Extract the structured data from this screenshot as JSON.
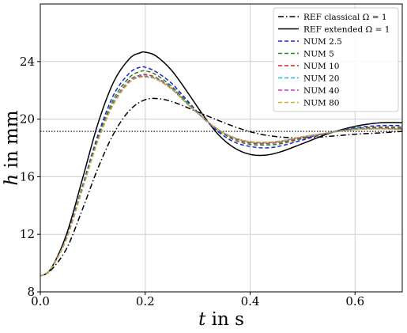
{
  "chart_data": {
    "type": "line",
    "xlabel_var": "t",
    "xlabel_unit": " in s",
    "ylabel_var": "h",
    "ylabel_unit": " in mm",
    "xlim": [
      0.0,
      0.69
    ],
    "ylim": [
      8,
      28
    ],
    "x_ticks": [
      0.0,
      0.2,
      0.4,
      0.6
    ],
    "x_tick_labels": [
      "0.0",
      "0.2",
      "0.4",
      "0.6"
    ],
    "y_ticks": [
      8,
      12,
      16,
      20,
      24
    ],
    "y_tick_labels": [
      "8",
      "12",
      "16",
      "20",
      "24"
    ],
    "grid": true,
    "legend_position": "top-right",
    "reference_line": {
      "y": 19.15,
      "style": "dotted",
      "color": "#000000"
    },
    "series": [
      {
        "name": "REF classical Ω = 1",
        "color": "#000000",
        "dash": "7,3,1.5,3",
        "x": [
          0.0,
          0.02,
          0.05,
          0.08,
          0.11,
          0.14,
          0.17,
          0.2,
          0.23,
          0.26,
          0.3,
          0.34,
          0.38,
          0.42,
          0.46,
          0.5,
          0.55,
          0.6,
          0.65,
          0.69
        ],
        "y": [
          9.1,
          9.5,
          11.0,
          13.7,
          16.6,
          19.0,
          20.6,
          21.35,
          21.4,
          21.1,
          20.5,
          19.9,
          19.35,
          18.95,
          18.75,
          18.7,
          18.8,
          18.95,
          19.05,
          19.15
        ]
      },
      {
        "name": "REF extended Ω = 1",
        "color": "#000000",
        "dash": "",
        "x": [
          0.0,
          0.02,
          0.05,
          0.08,
          0.11,
          0.14,
          0.17,
          0.19,
          0.2,
          0.22,
          0.25,
          0.28,
          0.31,
          0.34,
          0.37,
          0.4,
          0.43,
          0.46,
          0.5,
          0.55,
          0.6,
          0.65,
          0.69
        ],
        "y": [
          9.1,
          9.6,
          12.0,
          15.8,
          19.7,
          22.6,
          24.2,
          24.6,
          24.65,
          24.4,
          23.4,
          21.9,
          20.3,
          18.9,
          18.0,
          17.55,
          17.5,
          17.75,
          18.3,
          19.0,
          19.5,
          19.75,
          19.75
        ]
      },
      {
        "name": "NUM 2.5",
        "color": "#1f1fdd",
        "dash": "5,3",
        "x": [
          0.0,
          0.02,
          0.05,
          0.08,
          0.11,
          0.14,
          0.17,
          0.19,
          0.2,
          0.22,
          0.25,
          0.28,
          0.31,
          0.34,
          0.37,
          0.4,
          0.43,
          0.46,
          0.5,
          0.55,
          0.6,
          0.65,
          0.69
        ],
        "y": [
          9.1,
          9.6,
          11.8,
          15.3,
          18.9,
          21.7,
          23.2,
          23.6,
          23.6,
          23.3,
          22.5,
          21.3,
          20.1,
          19.1,
          18.4,
          18.1,
          18.0,
          18.15,
          18.55,
          19.05,
          19.4,
          19.55,
          19.55
        ]
      },
      {
        "name": "NUM 5",
        "color": "#1a8a1a",
        "dash": "5,3",
        "x": [
          0.0,
          0.02,
          0.05,
          0.08,
          0.11,
          0.14,
          0.17,
          0.19,
          0.2,
          0.22,
          0.25,
          0.28,
          0.31,
          0.34,
          0.37,
          0.4,
          0.43,
          0.46,
          0.5,
          0.55,
          0.6,
          0.65,
          0.69
        ],
        "y": [
          9.1,
          9.6,
          11.7,
          15.2,
          18.7,
          21.4,
          22.9,
          23.3,
          23.35,
          23.1,
          22.3,
          21.2,
          20.1,
          19.2,
          18.55,
          18.25,
          18.2,
          18.3,
          18.65,
          19.05,
          19.35,
          19.45,
          19.45
        ]
      },
      {
        "name": "NUM 10",
        "color": "#dd2222",
        "dash": "5,3",
        "x": [
          0.0,
          0.02,
          0.05,
          0.08,
          0.11,
          0.14,
          0.17,
          0.19,
          0.2,
          0.22,
          0.25,
          0.28,
          0.31,
          0.34,
          0.37,
          0.4,
          0.43,
          0.46,
          0.5,
          0.55,
          0.6,
          0.65,
          0.69
        ],
        "y": [
          9.1,
          9.6,
          11.7,
          15.1,
          18.6,
          21.2,
          22.7,
          23.05,
          23.1,
          22.9,
          22.2,
          21.1,
          20.1,
          19.25,
          18.65,
          18.35,
          18.3,
          18.4,
          18.7,
          19.05,
          19.3,
          19.4,
          19.35
        ]
      },
      {
        "name": "NUM 20",
        "color": "#17becf",
        "dash": "5,3",
        "x": [
          0.0,
          0.02,
          0.05,
          0.08,
          0.11,
          0.14,
          0.17,
          0.19,
          0.2,
          0.22,
          0.25,
          0.28,
          0.31,
          0.34,
          0.37,
          0.4,
          0.43,
          0.46,
          0.5,
          0.55,
          0.6,
          0.65,
          0.69
        ],
        "y": [
          9.1,
          9.6,
          11.7,
          15.1,
          18.55,
          21.15,
          22.65,
          23.0,
          23.0,
          22.85,
          22.15,
          21.1,
          20.1,
          19.25,
          18.7,
          18.4,
          18.35,
          18.45,
          18.75,
          19.05,
          19.3,
          19.35,
          19.3
        ]
      },
      {
        "name": "NUM 40",
        "color": "#cc33cc",
        "dash": "5,3",
        "x": [
          0.0,
          0.02,
          0.05,
          0.08,
          0.11,
          0.14,
          0.17,
          0.19,
          0.2,
          0.22,
          0.25,
          0.28,
          0.31,
          0.34,
          0.37,
          0.4,
          0.43,
          0.46,
          0.5,
          0.55,
          0.6,
          0.65,
          0.69
        ],
        "y": [
          9.1,
          9.6,
          11.7,
          15.1,
          18.5,
          21.1,
          22.6,
          22.95,
          22.95,
          22.8,
          22.1,
          21.05,
          20.1,
          19.25,
          18.7,
          18.42,
          18.38,
          18.48,
          18.77,
          19.05,
          19.28,
          19.33,
          19.28
        ]
      },
      {
        "name": "NUM 80",
        "color": "#c8b428",
        "dash": "5,3",
        "x": [
          0.0,
          0.02,
          0.05,
          0.08,
          0.11,
          0.14,
          0.17,
          0.19,
          0.2,
          0.22,
          0.25,
          0.28,
          0.31,
          0.34,
          0.37,
          0.4,
          0.43,
          0.46,
          0.5,
          0.55,
          0.6,
          0.65,
          0.69
        ],
        "y": [
          9.1,
          9.6,
          11.7,
          15.1,
          18.5,
          21.05,
          22.55,
          22.9,
          22.92,
          22.78,
          22.08,
          21.05,
          20.1,
          19.25,
          18.72,
          18.44,
          18.4,
          18.5,
          18.78,
          19.05,
          19.27,
          19.32,
          19.27
        ]
      }
    ]
  }
}
